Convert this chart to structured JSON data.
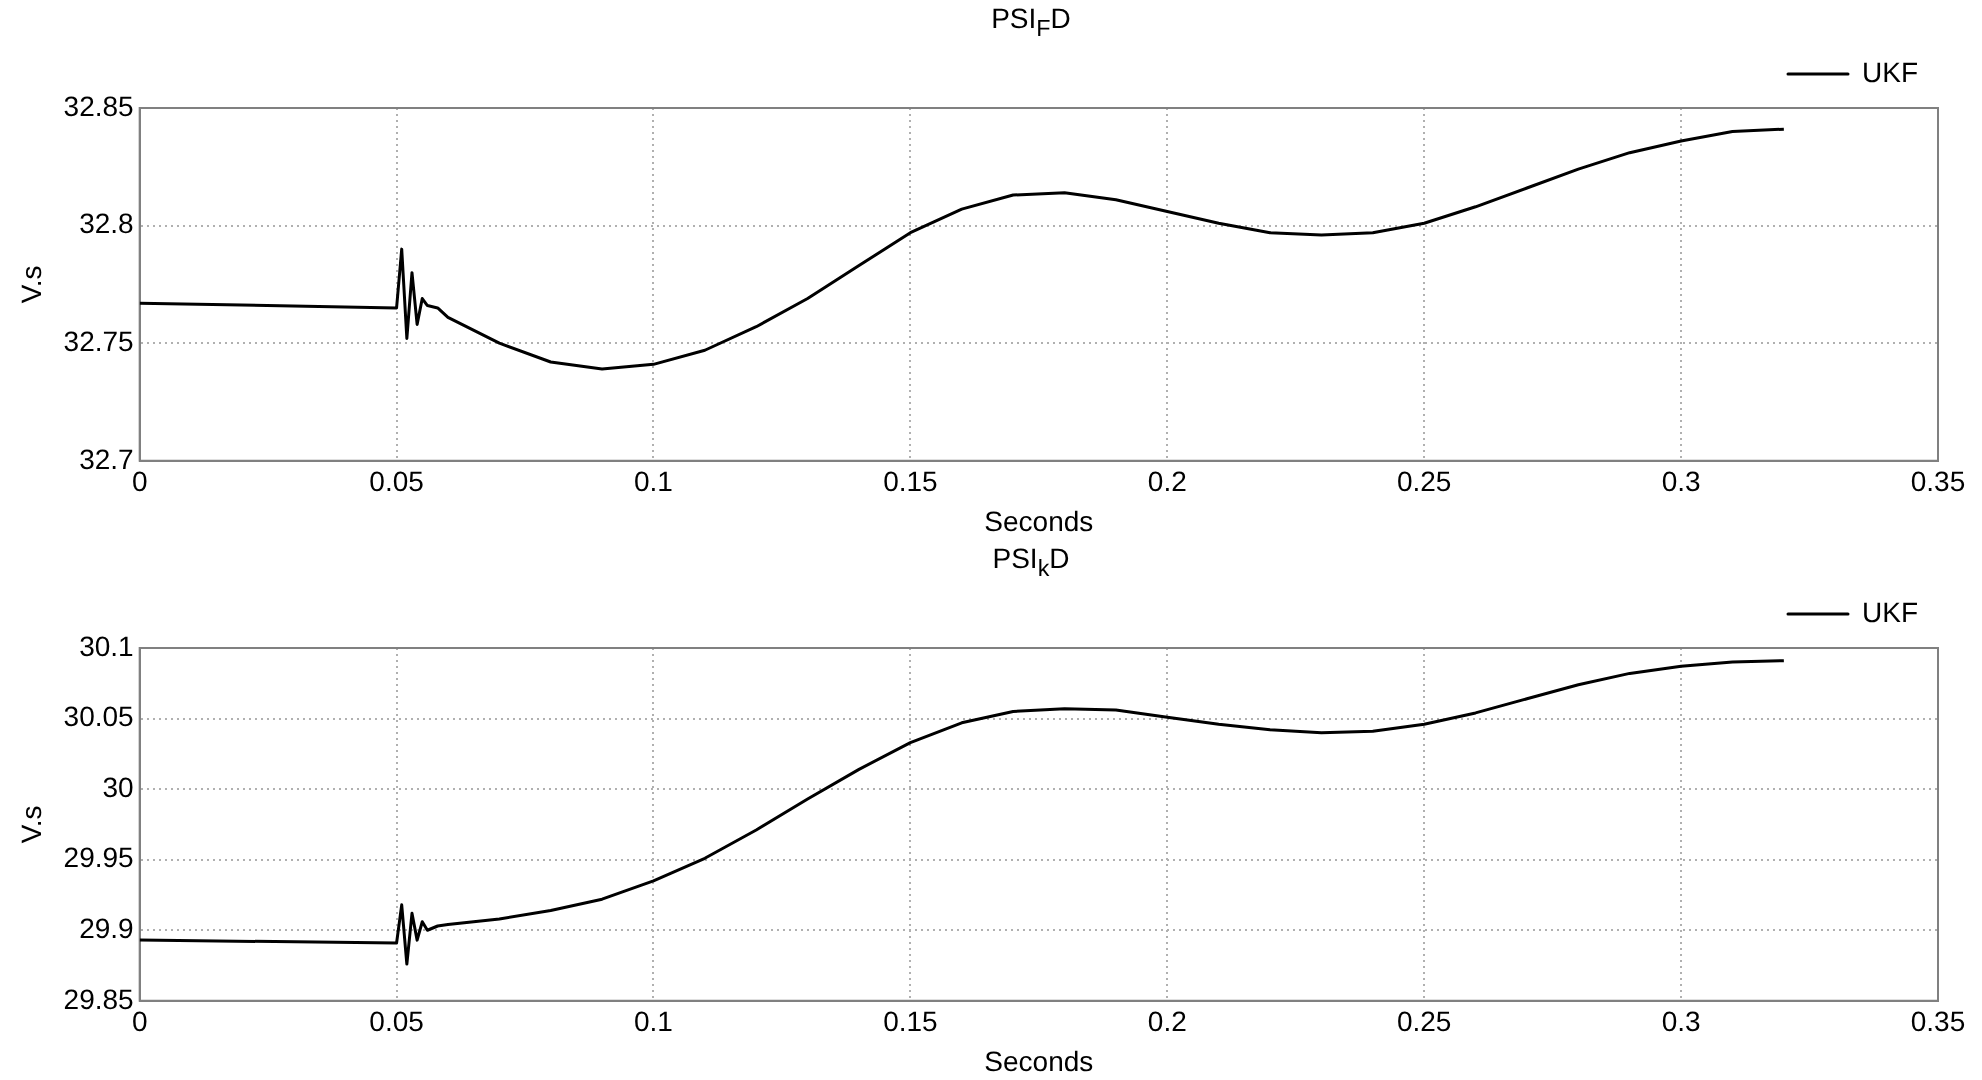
{
  "chart_data": [
    {
      "type": "line",
      "title": "PSI$_{F}$D",
      "xlabel": "Seconds",
      "ylabel": "V.s",
      "legend": "top right",
      "grid": true,
      "line_style": "solid",
      "marker": "none",
      "x": [
        0,
        0.05,
        0.051,
        0.052,
        0.053,
        0.054,
        0.055,
        0.056,
        0.058,
        0.06,
        0.07,
        0.08,
        0.09,
        0.1,
        0.11,
        0.12,
        0.13,
        0.14,
        0.15,
        0.16,
        0.17,
        0.18,
        0.19,
        0.2,
        0.21,
        0.22,
        0.23,
        0.24,
        0.25,
        0.26,
        0.27,
        0.28,
        0.29,
        0.3,
        0.31,
        0.32
      ],
      "series": [
        {
          "name": "UKF",
          "color": "#000000",
          "values": [
            32.767,
            32.765,
            32.79,
            32.752,
            32.78,
            32.758,
            32.769,
            32.766,
            32.765,
            32.761,
            32.75,
            32.742,
            32.739,
            32.741,
            32.747,
            32.757,
            32.769,
            32.783,
            32.797,
            32.807,
            32.813,
            32.814,
            32.811,
            32.806,
            32.801,
            32.797,
            32.796,
            32.797,
            32.801,
            32.808,
            32.816,
            32.824,
            32.831,
            32.836,
            32.84,
            32.841
          ]
        }
      ],
      "xlim": [
        0,
        0.35
      ],
      "xticks": [
        0,
        0.05,
        0.1,
        0.15,
        0.2,
        0.25,
        0.3,
        0.35
      ],
      "ylim": [
        32.7,
        32.85
      ],
      "yticks": [
        32.7,
        32.75,
        32.8,
        32.85
      ]
    },
    {
      "type": "line",
      "title": "PSI$_{k}$D",
      "xlabel": "Seconds",
      "ylabel": "V.s",
      "legend": "top right",
      "grid": true,
      "line_style": "solid",
      "marker": "none",
      "x": [
        0,
        0.05,
        0.051,
        0.052,
        0.053,
        0.054,
        0.055,
        0.056,
        0.058,
        0.06,
        0.07,
        0.08,
        0.09,
        0.1,
        0.11,
        0.12,
        0.13,
        0.14,
        0.15,
        0.16,
        0.17,
        0.18,
        0.19,
        0.2,
        0.21,
        0.22,
        0.23,
        0.24,
        0.25,
        0.26,
        0.27,
        0.28,
        0.29,
        0.3,
        0.31,
        0.32
      ],
      "series": [
        {
          "name": "UKF",
          "color": "#000000",
          "values": [
            29.893,
            29.891,
            29.918,
            29.876,
            29.912,
            29.893,
            29.906,
            29.9,
            29.903,
            29.904,
            29.908,
            29.914,
            29.922,
            29.935,
            29.951,
            29.971,
            29.993,
            30.014,
            30.033,
            30.047,
            30.055,
            30.057,
            30.056,
            30.051,
            30.046,
            30.042,
            30.04,
            30.041,
            30.046,
            30.054,
            30.064,
            30.074,
            30.082,
            30.087,
            30.09,
            30.091
          ]
        }
      ],
      "xlim": [
        0,
        0.35
      ],
      "xticks": [
        0,
        0.05,
        0.1,
        0.15,
        0.2,
        0.25,
        0.3,
        0.35
      ],
      "ylim": [
        29.85,
        30.1
      ],
      "yticks": [
        29.85,
        29.9,
        29.95,
        30,
        30.05,
        30.1
      ]
    }
  ]
}
